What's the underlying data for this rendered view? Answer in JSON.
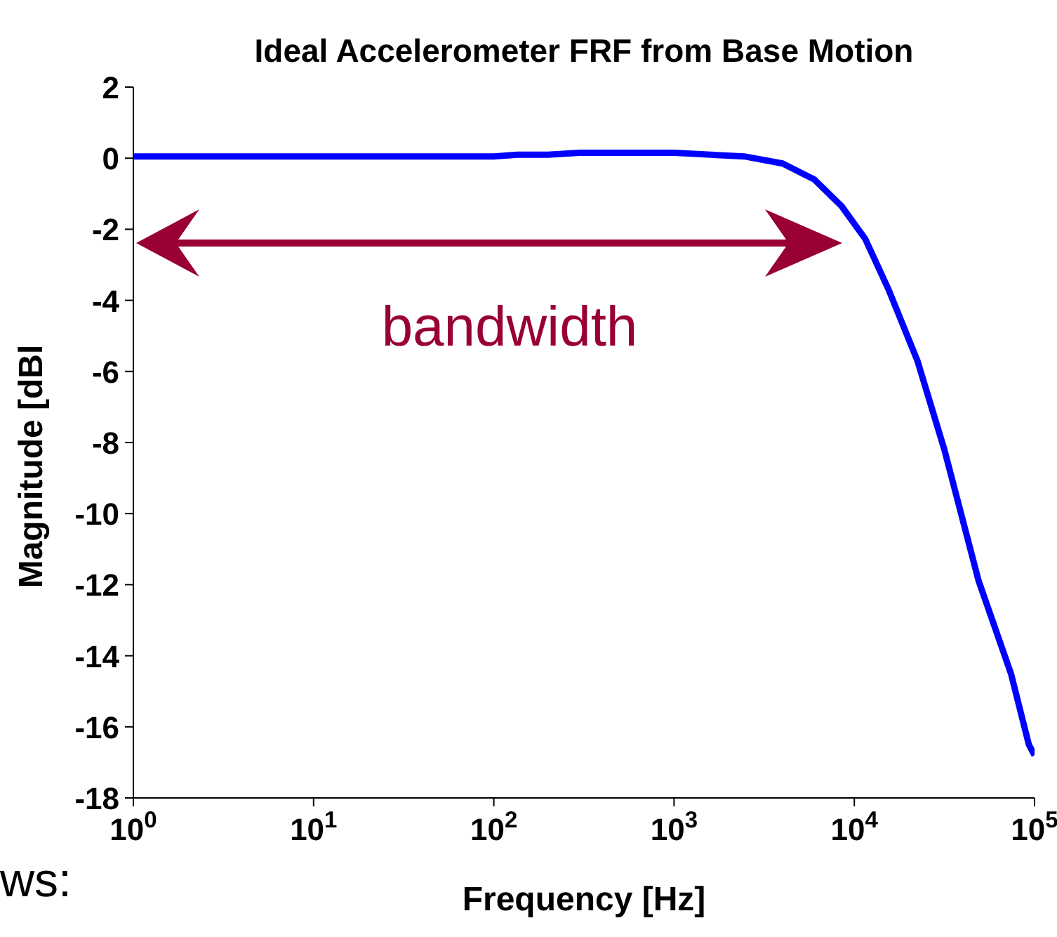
{
  "chart_data": {
    "type": "line",
    "title": "Ideal Accelerometer FRF from Base Motion",
    "xlabel": "Frequency [Hz]",
    "ylabel": "Magnitude [dBl",
    "log": "x",
    "x": [
      1,
      10,
      100,
      135,
      200,
      300,
      1000,
      2450,
      4000,
      6000,
      8500,
      11500,
      15500,
      22400,
      31600,
      49000,
      74000,
      93000,
      100000
    ],
    "series": [
      {
        "color": "#0000ff",
        "values": [
          0.05,
          0.05,
          0.05,
          0.1,
          0.1,
          0.15,
          0.15,
          0.05,
          -0.15,
          -0.6,
          -1.35,
          -2.27,
          -3.7,
          -5.7,
          -8.2,
          -11.9,
          -14.5,
          -16.5,
          -16.8
        ]
      }
    ],
    "xlim": [
      1,
      100000
    ],
    "xticks": [
      {
        "value": 1,
        "label": "10$^{0}$"
      },
      {
        "value": 10,
        "label": "10$^{1}$"
      },
      {
        "value": 100,
        "label": "10$^{2}$"
      },
      {
        "value": 1000,
        "label": "10$^{3}$"
      },
      {
        "value": 10000,
        "label": "10$^{4}$"
      },
      {
        "value": 100000,
        "label": "10$^{5}$"
      }
    ],
    "ylim": [
      -18,
      2
    ],
    "yticks": [
      2,
      0,
      -2,
      -4,
      -6,
      -8,
      -10,
      -12,
      -14,
      -16,
      -18
    ],
    "grid": false,
    "legend": false,
    "marker": "none",
    "line_style": "solid",
    "annotations": [
      "bandwidth",
      "ws:"
    ]
  }
}
